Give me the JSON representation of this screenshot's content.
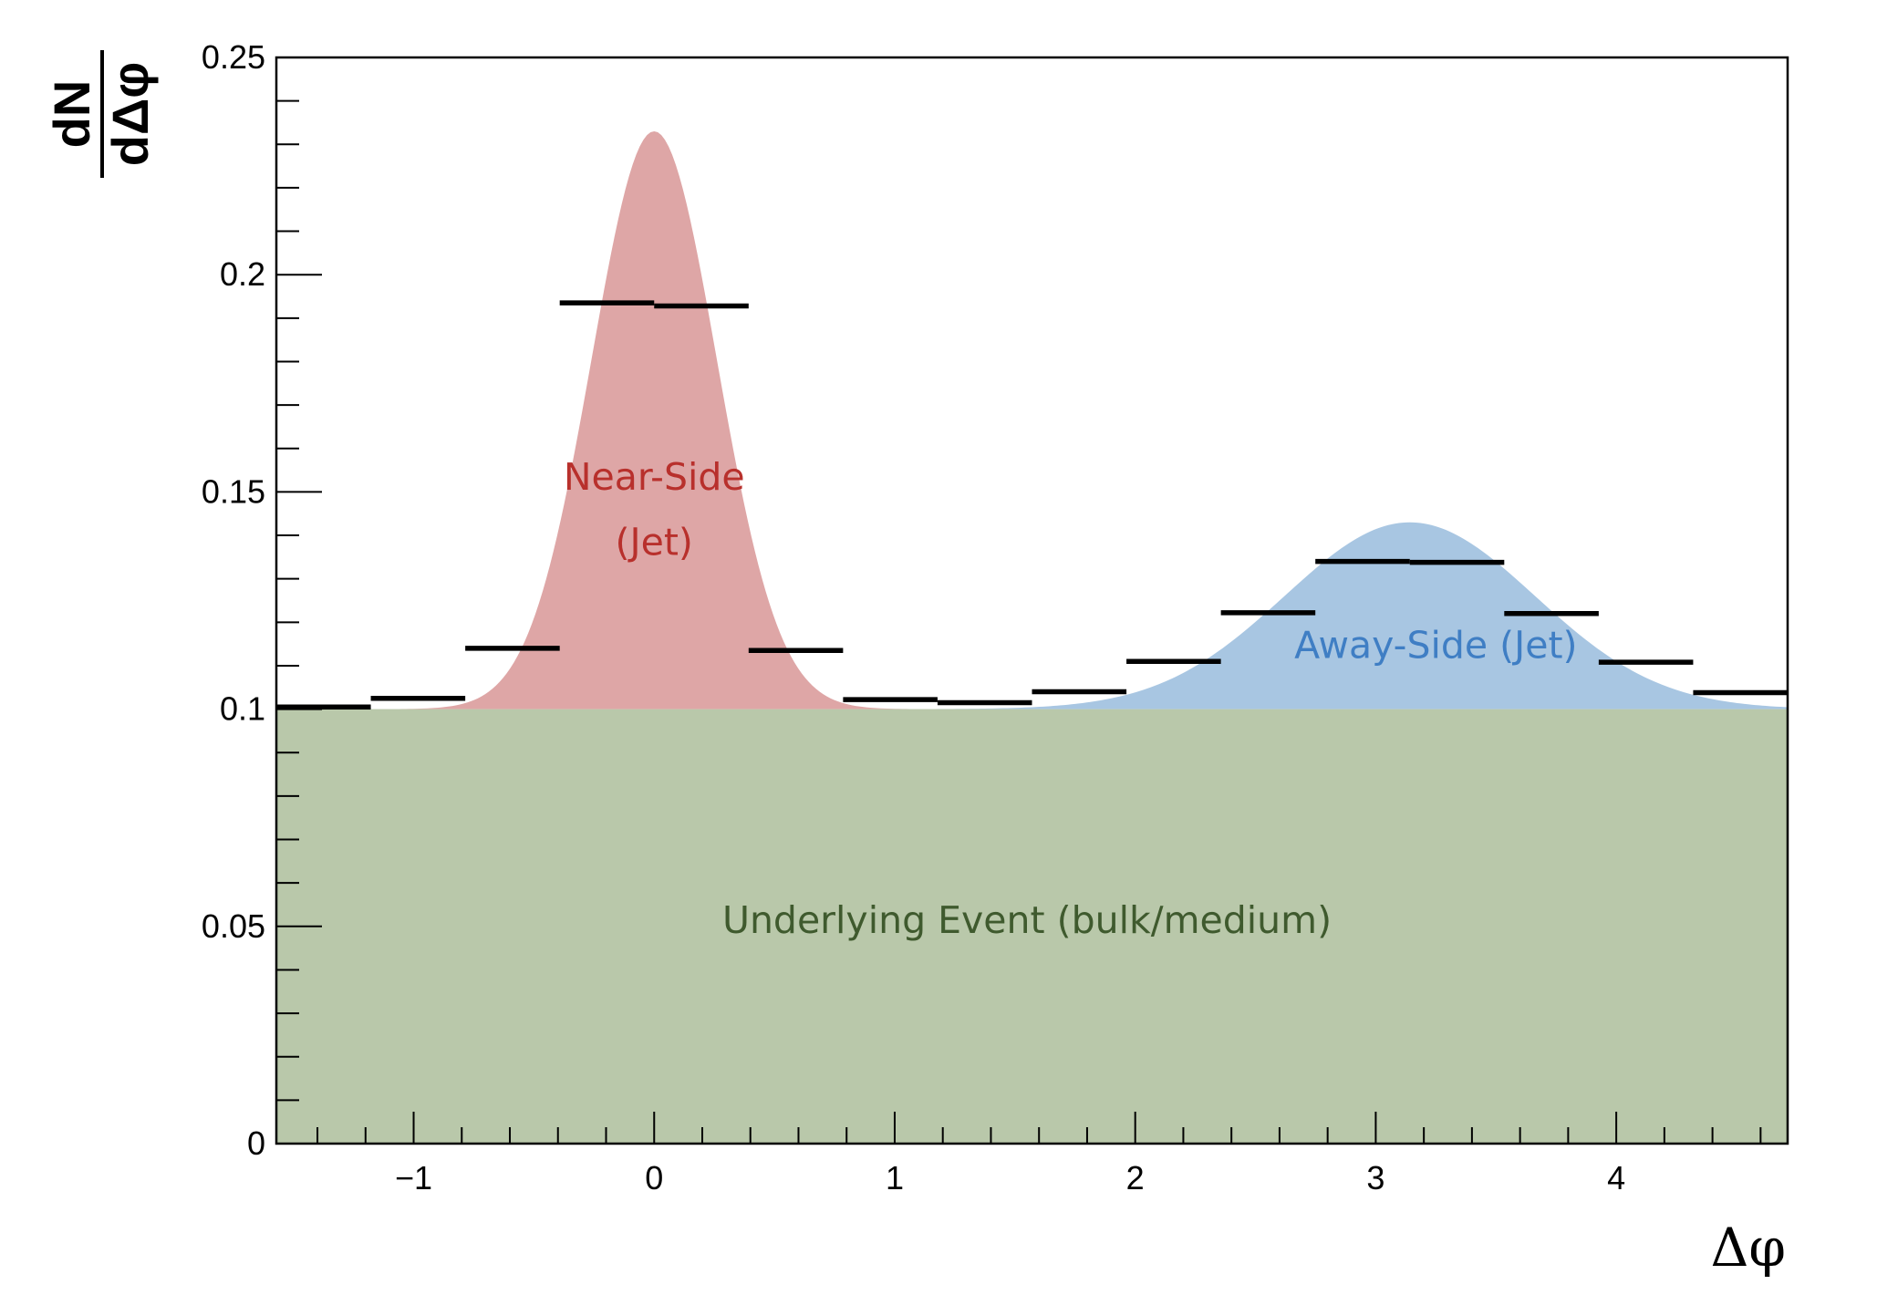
{
  "chart_data": {
    "type": "area",
    "title": "",
    "xlabel": "Δφ",
    "ylabel_numerator": "dN",
    "ylabel_denominator": "dΔφ",
    "xlim": [
      -1.5708,
      4.7124
    ],
    "ylim": [
      0,
      0.25
    ],
    "x_ticks": [
      -1,
      0,
      1,
      2,
      3,
      4
    ],
    "x_tick_labels": [
      "−1",
      "0",
      "1",
      "2",
      "3",
      "4"
    ],
    "y_ticks": [
      0,
      0.05,
      0.1,
      0.15,
      0.2,
      0.25
    ],
    "y_tick_labels": [
      "0",
      "0.05",
      "0.1",
      "0.15",
      "0.2",
      "0.25"
    ],
    "grid": false,
    "regions": [
      {
        "name": "Underlying Event (bulk/medium)",
        "type": "baseline",
        "level": 0.1,
        "color": "#b9c8aa",
        "label_color": "#3f5a2e"
      },
      {
        "name": "Near-Side (Jet)",
        "label_lines": [
          "Near-Side",
          "(Jet)"
        ],
        "type": "peak",
        "center": 0.0,
        "peak_value": 0.233,
        "color": "#dea6a6",
        "label_color": "#b8302c"
      },
      {
        "name": "Away-Side (Jet)",
        "label_lines": [
          "Away-Side (Jet)"
        ],
        "type": "peak",
        "center": 3.1416,
        "peak_value": 0.143,
        "color": "#a8c6e2",
        "label_color": "#3f7ec4"
      }
    ],
    "histogram": {
      "bin_edges": [
        -1.5708,
        -1.1781,
        -0.7854,
        -0.3927,
        0.0,
        0.3927,
        0.7854,
        1.1781,
        1.5708,
        1.9635,
        2.3562,
        2.7489,
        3.1416,
        3.5343,
        3.927,
        4.3197,
        4.7124
      ],
      "values": [
        0.1005,
        0.1025,
        0.114,
        0.1935,
        0.1928,
        0.1135,
        0.1022,
        0.1015,
        0.104,
        0.111,
        0.1222,
        0.134,
        0.1338,
        0.122,
        0.1108,
        0.1038
      ],
      "color": "#000000"
    }
  }
}
